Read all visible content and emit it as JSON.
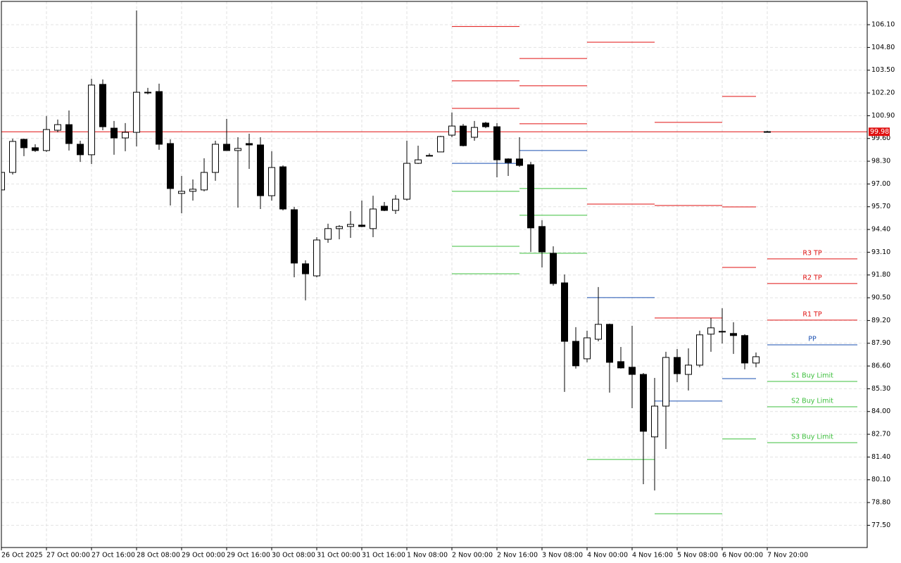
{
  "chart_data": {
    "type": "candlestick",
    "categories": [
      "26 Oct 2025",
      null,
      null,
      null,
      "27 Oct 00:00",
      null,
      null,
      null,
      "27 Oct 16:00",
      null,
      null,
      null,
      "28 Oct 08:00",
      null,
      null,
      null,
      "29 Oct 00:00",
      null,
      null,
      null,
      "29 Oct 16:00",
      null,
      null,
      null,
      "30 Oct 08:00",
      null,
      null,
      null,
      "31 Oct 00:00",
      null,
      null,
      null,
      "31 Oct 16:00",
      null,
      null,
      null,
      "1 Nov 08:00",
      null,
      null,
      null,
      "2 Nov 00:00",
      null,
      null,
      null,
      "2 Nov 16:00",
      null,
      null,
      null,
      "3 Nov 08:00",
      null,
      null,
      null,
      "4 Nov 00:00",
      null,
      null,
      null,
      "4 Nov 16:00",
      null,
      null,
      null,
      "5 Nov 08:00",
      null,
      null,
      null,
      "6 Nov 00:00",
      null,
      null,
      null,
      "7 Nov 20:00"
    ],
    "open": [
      96.66,
      97.66,
      99.55,
      99.07,
      98.91,
      100.07,
      100.39,
      99.27,
      98.67,
      102.69,
      100.19,
      99.63,
      99.95,
      102.24,
      102.28,
      99.31,
      96.46,
      96.58,
      96.66,
      97.66,
      99.27,
      98.91,
      99.31,
      99.23,
      96.33,
      97.98,
      95.53,
      92.44,
      91.75,
      93.84,
      94.45,
      94.57,
      94.65,
      94.45,
      95.73,
      95.49,
      96.13,
      98.18,
      98.59,
      98.83,
      99.79,
      100.31,
      99.67,
      100.48,
      100.27,
      98.43,
      98.43,
      98.1,
      94.57,
      93.04,
      91.35,
      88.01,
      87.01,
      88.13,
      88.98,
      86.85,
      86.53,
      86.12,
      82.55,
      84.31,
      87.09,
      86.12,
      86.65,
      88.42,
      88.58,
      88.46,
      88.34,
      86.77,
      99.99
    ],
    "high": [
      97.86,
      99.59,
      99.59,
      99.27,
      100.88,
      100.68,
      101.2,
      99.47,
      103.01,
      102.97,
      100.6,
      100.48,
      106.91,
      102.49,
      102.73,
      99.55,
      97.46,
      97.26,
      98.47,
      99.47,
      100.72,
      99.67,
      99.87,
      99.67,
      98.87,
      98.06,
      95.69,
      92.64,
      93.96,
      94.73,
      94.65,
      95.45,
      96.05,
      96.33,
      95.97,
      96.37,
      99.47,
      99.19,
      98.75,
      99.75,
      101.08,
      100.43,
      100.6,
      100.55,
      100.48,
      98.47,
      99.67,
      98.26,
      94.93,
      93.44,
      91.83,
      88.82,
      88.62,
      91.11,
      89.02,
      87.69,
      88.9,
      86.2,
      85.92,
      87.41,
      87.57,
      87.61,
      88.62,
      89.34,
      89.9,
      89.1,
      88.42,
      87.37,
      100.03
    ],
    "low": [
      96.58,
      97.54,
      98.59,
      98.83,
      98.83,
      99.95,
      98.91,
      98.26,
      98.14,
      100.07,
      98.67,
      98.87,
      99.15,
      102.12,
      98.95,
      95.77,
      95.33,
      96.05,
      96.58,
      97.18,
      98.91,
      95.65,
      97.86,
      95.57,
      96.05,
      95.49,
      91.67,
      90.35,
      91.67,
      93.64,
      93.84,
      93.92,
      94.53,
      93.96,
      95.45,
      95.29,
      96.05,
      98.14,
      98.59,
      98.83,
      99.67,
      99.15,
      99.47,
      100.19,
      97.38,
      97.46,
      97.98,
      93.12,
      92.23,
      91.19,
      85.12,
      86.45,
      86.81,
      88.01,
      85.08,
      86.45,
      84.19,
      79.85,
      79.49,
      81.86,
      85.68,
      85.2,
      86.53,
      87.41,
      87.89,
      87.29,
      86.41,
      86.53,
      99.95
    ],
    "close": [
      97.66,
      99.43,
      99.07,
      98.91,
      100.11,
      100.39,
      99.31,
      98.67,
      102.65,
      100.27,
      99.63,
      99.95,
      102.24,
      102.2,
      99.27,
      96.74,
      96.58,
      96.7,
      97.66,
      99.27,
      98.91,
      99.03,
      99.23,
      96.33,
      97.94,
      95.57,
      92.48,
      91.87,
      93.8,
      94.45,
      94.57,
      94.69,
      94.57,
      95.57,
      95.49,
      96.13,
      98.18,
      98.38,
      98.63,
      99.71,
      100.31,
      99.19,
      100.23,
      100.27,
      98.38,
      98.22,
      98.06,
      94.49,
      93.12,
      91.31,
      88.01,
      86.61,
      88.21,
      88.98,
      86.81,
      86.49,
      86.12,
      82.87,
      84.31,
      87.09,
      86.16,
      86.65,
      88.38,
      88.78,
      88.58,
      88.34,
      86.77,
      87.13,
      99.95
    ],
    "up_color": "#ffffff",
    "down_color": "#000000",
    "xlim": [
      0,
      76.875
    ],
    "ylim": [
      76.23,
      107.43
    ],
    "yticks": [
      {
        "value": 106.1,
        "label": "106.10"
      },
      {
        "value": 104.8,
        "label": "104.80"
      },
      {
        "value": 103.5,
        "label": "103.50"
      },
      {
        "value": 102.2,
        "label": "102.20"
      },
      {
        "value": 100.9,
        "label": "100.90"
      },
      {
        "value": 99.6,
        "label": "99.60"
      },
      {
        "value": 98.3,
        "label": "98.30"
      },
      {
        "value": 97,
        "label": "97.00"
      },
      {
        "value": 95.7,
        "label": "95.70"
      },
      {
        "value": 94.4,
        "label": "94.40"
      },
      {
        "value": 93.1,
        "label": "93.10"
      },
      {
        "value": 91.8,
        "label": "91.80"
      },
      {
        "value": 90.5,
        "label": "90.50"
      },
      {
        "value": 89.2,
        "label": "89.20"
      },
      {
        "value": 87.9,
        "label": "87.90"
      },
      {
        "value": 86.6,
        "label": "86.60"
      },
      {
        "value": 85.3,
        "label": "85.30"
      },
      {
        "value": 84,
        "label": "84.00"
      },
      {
        "value": 82.7,
        "label": "82.70"
      },
      {
        "value": 81.4,
        "label": "81.40"
      },
      {
        "value": 80.1,
        "label": "80.10"
      },
      {
        "value": 78.8,
        "label": "78.80"
      },
      {
        "value": 77.5,
        "label": "77.50"
      }
    ],
    "grid": true,
    "last_price": {
      "value": 99.98,
      "color": "#e01010"
    },
    "levels": [
      {
        "from": 40,
        "to": 46,
        "color": "#e01010",
        "values": [
          106.0,
          102.89,
          101.32
        ]
      },
      {
        "from": 40,
        "to": 46,
        "color": "#1a4fb0",
        "values": [
          98.18
        ]
      },
      {
        "from": 40,
        "to": 46,
        "color": "#3cbf3c",
        "values": [
          96.58,
          93.44,
          91.87
        ]
      },
      {
        "from": 46,
        "to": 52,
        "color": "#e01010",
        "values": [
          104.17,
          102.61,
          100.44
        ]
      },
      {
        "from": 46,
        "to": 52,
        "color": "#1a4fb0",
        "values": [
          98.91
        ]
      },
      {
        "from": 46,
        "to": 52,
        "color": "#3cbf3c",
        "values": [
          96.74,
          95.21,
          93.04
        ]
      },
      {
        "from": 52,
        "to": 58,
        "color": "#e01010",
        "values": [
          105.1,
          95.85
        ]
      },
      {
        "from": 52,
        "to": 58,
        "color": "#1a4fb0",
        "values": [
          90.51
        ]
      },
      {
        "from": 52,
        "to": 58,
        "color": "#3cbf3c",
        "values": [
          81.26
        ]
      },
      {
        "from": 58,
        "to": 64,
        "color": "#e01010",
        "values": [
          100.52,
          95.77,
          89.34
        ]
      },
      {
        "from": 58,
        "to": 64,
        "color": "#1a4fb0",
        "values": [
          84.6
        ]
      },
      {
        "from": 58,
        "to": 64,
        "color": "#3cbf3c",
        "values": [
          78.16
        ]
      },
      {
        "from": 64,
        "to": 67,
        "color": "#e01010",
        "values": [
          102.0,
          95.69,
          92.23
        ]
      },
      {
        "from": 64,
        "to": 67,
        "color": "#1a4fb0",
        "values": [
          85.88
        ]
      },
      {
        "from": 64,
        "to": 67,
        "color": "#3cbf3c",
        "values": [
          82.43
        ]
      }
    ],
    "labeled_levels": [
      {
        "name": "R3 TP",
        "value": 92.72,
        "color": "#e01010",
        "from": 68,
        "to": 76
      },
      {
        "name": "R2 TP",
        "value": 91.31,
        "color": "#e01010",
        "from": 68,
        "to": 76
      },
      {
        "name": "R1 TP",
        "value": 89.22,
        "color": "#e01010",
        "from": 68,
        "to": 76
      },
      {
        "name": "PP",
        "value": 87.81,
        "color": "#1a4fb0",
        "from": 68,
        "to": 76
      },
      {
        "name": "S1 Buy Limit",
        "value": 85.72,
        "color": "#3cbf3c",
        "from": 68,
        "to": 76
      },
      {
        "name": "S2 Buy Limit",
        "value": 84.27,
        "color": "#3cbf3c",
        "from": 68,
        "to": 76
      },
      {
        "name": "S3 Buy Limit",
        "value": 82.22,
        "color": "#3cbf3c",
        "from": 68,
        "to": 76
      }
    ]
  }
}
